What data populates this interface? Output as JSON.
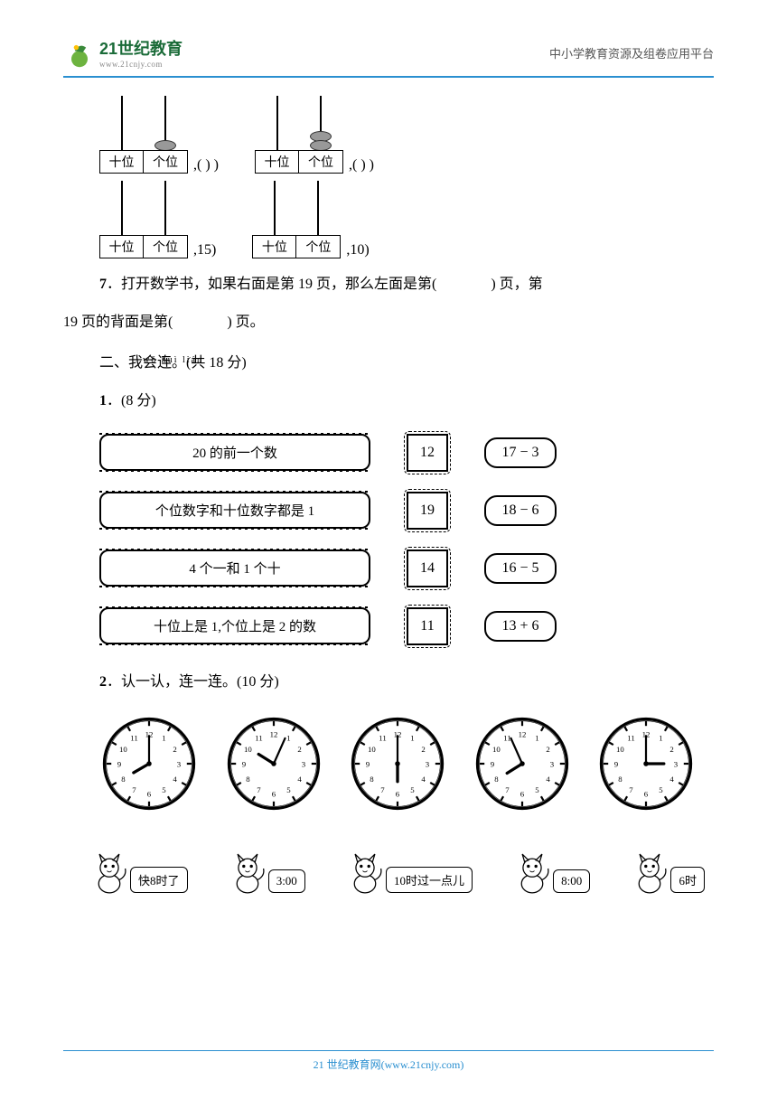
{
  "header": {
    "logo_text": "21世纪教育",
    "logo_url": "www.21cnjy.com",
    "right_text": "中小学教育资源及组卷应用平台"
  },
  "abacus_rows": [
    {
      "items": [
        {
          "tens_label": "十位",
          "ones_label": "个位",
          "tens_beads": 0,
          "ones_beads": 1,
          "suffix": ",(",
          "blank": "          ",
          "close": ")    )"
        },
        {
          "tens_label": "十位",
          "ones_label": "个位",
          "tens_beads": 0,
          "ones_beads": 2,
          "suffix": ",(",
          "blank": "          ",
          "close": ")    )"
        }
      ]
    },
    {
      "items": [
        {
          "tens_label": "十位",
          "ones_label": "个位",
          "tens_beads": 0,
          "ones_beads": 0,
          "suffix": ",15)",
          "blank": "",
          "close": ""
        },
        {
          "tens_label": "十位",
          "ones_label": "个位",
          "tens_beads": 0,
          "ones_beads": 0,
          "suffix": ",10)",
          "blank": "",
          "close": ""
        }
      ]
    }
  ],
  "q7": {
    "num": "7",
    "text_a": "．打开数学书，如果右面是第 19 页，那么左面是第(",
    "text_b": ")  页，第",
    "text_c": "19 页的背面是第(",
    "text_d": ")  页。"
  },
  "section2": {
    "pinyin": "wǒ huì lián",
    "title": "二、我会连。",
    "points": "(共 18 分)"
  },
  "q2_1": {
    "num": "1",
    "points": "．(8 分)"
  },
  "match_rows": [
    {
      "desc": "20 的前一个数",
      "num": "12",
      "expr": "17 − 3"
    },
    {
      "desc": "个位数字和十位数字都是 1",
      "num": "19",
      "expr": "18 − 6"
    },
    {
      "desc": "4 个一和 1 个十",
      "num": "14",
      "expr": "16 − 5"
    },
    {
      "desc": "十位上是 1,个位上是 2 的数",
      "num": "11",
      "expr": "13 + 6"
    }
  ],
  "q2_2": {
    "num": "2",
    "text": "．认一认，连一连。(10 分)"
  },
  "clocks": [
    {
      "hour": 8,
      "minute": 0
    },
    {
      "hour": 10,
      "minute": 4
    },
    {
      "hour": 6,
      "minute": 0
    },
    {
      "hour": 7,
      "minute": 56
    },
    {
      "hour": 3,
      "minute": 0
    }
  ],
  "cats": [
    {
      "label": "快8时了"
    },
    {
      "label": "3:00"
    },
    {
      "label": "10时过一点儿"
    },
    {
      "label": "8:00"
    },
    {
      "label": "6时"
    }
  ],
  "footer": "21 世纪教育网(www.21cnjy.com)",
  "colors": {
    "accent": "#2a8fd0",
    "logo_green": "#1a6b38"
  }
}
